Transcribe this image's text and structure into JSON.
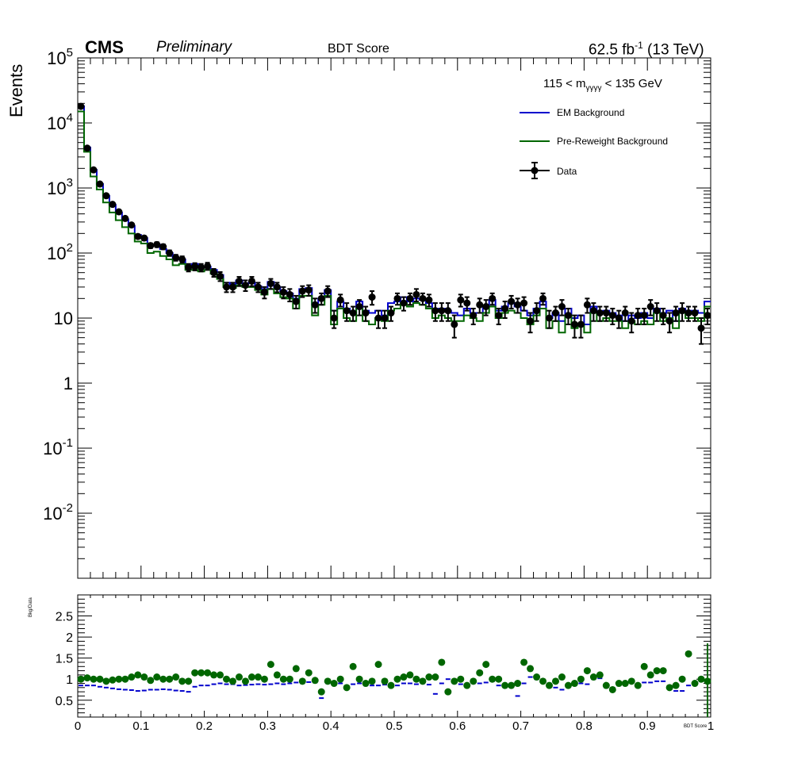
{
  "header": {
    "experiment": "CMS",
    "status": "Preliminary",
    "title": "BDT Score",
    "lumi": "62.5 fb",
    "lumi_sup": "-1",
    "lumi_energy": " (13 TeV)"
  },
  "annotation": {
    "mass_prefix": "115 < m",
    "mass_sub": "γγγγ",
    "mass_suffix": " < 135 GeV"
  },
  "colors": {
    "em_background": "#0000cc",
    "pre_reweight": "#006600",
    "data": "#000000",
    "ratio_points": "#006600"
  },
  "chart_data": [
    {
      "type": "line",
      "name": "main-panel",
      "ylabel": "Events",
      "yscale": "log",
      "ylim": [
        0.001,
        100000
      ],
      "xlim": [
        0,
        1
      ],
      "bins": 100,
      "ytick_labels": [
        "10^5",
        "10^4",
        "10^3",
        "10^2",
        "10",
        "1",
        "10^-1",
        "10^-2"
      ],
      "legend": [
        "EM Background",
        "Pre-Reweight Background",
        "Data"
      ],
      "legend_position": "top-right",
      "series": [
        {
          "name": "EM Background",
          "values": [
            18000,
            4200,
            1900,
            1150,
            760,
            550,
            420,
            330,
            260,
            190,
            170,
            130,
            135,
            115,
            100,
            80,
            80,
            62,
            68,
            60,
            62,
            55,
            46,
            35,
            33,
            38,
            34,
            35,
            31,
            28,
            36,
            30,
            26,
            24,
            20,
            28,
            29,
            16,
            20,
            27,
            13,
            18,
            14,
            12,
            18,
            13,
            12,
            13,
            11,
            17,
            18,
            21,
            18,
            20,
            19,
            17,
            13,
            14,
            13,
            12,
            11,
            14,
            12,
            12,
            15,
            19,
            13,
            15,
            17,
            15,
            13,
            11,
            14,
            18,
            10,
            12,
            9,
            14,
            10,
            11,
            8,
            15,
            12,
            13,
            12,
            11,
            9,
            11,
            10,
            12,
            10,
            14,
            12,
            13,
            9,
            14,
            13,
            13,
            12,
            18
          ]
        },
        {
          "name": "Pre-Reweight Background",
          "values": [
            15000,
            3600,
            1500,
            950,
            600,
            420,
            320,
            250,
            200,
            150,
            140,
            100,
            105,
            90,
            80,
            65,
            68,
            55,
            55,
            52,
            55,
            48,
            40,
            30,
            29,
            32,
            30,
            30,
            27,
            23,
            28,
            24,
            21,
            20,
            14,
            22,
            22,
            11,
            16,
            22,
            8,
            14,
            10,
            9,
            14,
            9,
            8,
            10,
            9,
            13,
            14,
            17,
            15,
            17,
            16,
            14,
            10,
            11,
            10,
            9,
            9,
            11,
            10,
            9,
            12,
            15,
            10,
            12,
            13,
            12,
            10,
            8,
            11,
            14,
            7,
            9,
            6,
            11,
            7,
            8,
            6,
            12,
            9,
            10,
            9,
            9,
            7,
            9,
            8,
            9,
            8,
            12,
            9,
            10,
            7,
            12,
            10,
            10,
            9,
            15
          ]
        },
        {
          "name": "Data",
          "values": [
            18000,
            4100,
            1900,
            1150,
            760,
            560,
            430,
            340,
            270,
            180,
            170,
            130,
            135,
            125,
            100,
            85,
            80,
            60,
            62,
            60,
            63,
            50,
            44,
            30,
            30,
            37,
            32,
            37,
            30,
            25,
            34,
            30,
            25,
            23,
            18,
            26,
            27,
            16,
            20,
            26,
            10,
            19,
            13,
            12,
            15,
            12,
            21,
            10,
            10,
            12,
            20,
            17,
            20,
            23,
            20,
            19,
            13,
            13,
            13,
            8,
            19,
            17,
            11,
            16,
            15,
            20,
            11,
            14,
            18,
            16,
            17,
            9,
            13,
            20,
            10,
            12,
            15,
            11,
            8,
            8,
            16,
            13,
            12,
            12,
            11,
            10,
            12,
            9,
            11,
            11,
            15,
            13,
            11,
            9,
            12,
            13,
            12,
            12,
            7,
            11
          ]
        },
        {
          "name": "Data error",
          "values": [
            134,
            64,
            44,
            34,
            28,
            24,
            21,
            18,
            16,
            13,
            13,
            11,
            12,
            11,
            10,
            9,
            9,
            8,
            8,
            8,
            8,
            7,
            7,
            5,
            5,
            6,
            6,
            6,
            5,
            5,
            6,
            5,
            5,
            5,
            4,
            5,
            5,
            4,
            4,
            5,
            3,
            4,
            4,
            3,
            4,
            3,
            5,
            3,
            3,
            3,
            4,
            4,
            4,
            5,
            4,
            4,
            4,
            4,
            4,
            3,
            4,
            4,
            3,
            4,
            4,
            4,
            3,
            4,
            4,
            4,
            4,
            3,
            4,
            4,
            3,
            3,
            4,
            3,
            3,
            3,
            4,
            4,
            3,
            3,
            3,
            3,
            3,
            3,
            3,
            3,
            4,
            4,
            3,
            3,
            3,
            4,
            3,
            3,
            3,
            3
          ]
        }
      ]
    },
    {
      "type": "scatter",
      "name": "ratio-panel",
      "xlabel": "BDT Score",
      "ylabel": "Bkg/Data",
      "xlim": [
        0,
        1
      ],
      "ylim": [
        0.1,
        3.0
      ],
      "xtick_labels": [
        "0",
        "0.1",
        "0.2",
        "0.3",
        "0.4",
        "0.5",
        "0.6",
        "0.7",
        "0.8",
        "0.9",
        "1"
      ],
      "ytick_labels": [
        "0.5",
        "1",
        "1.5",
        "2",
        "2.5"
      ],
      "series": [
        {
          "name": "Pre-Reweight Background",
          "values": [
            1.0,
            1.03,
            1.0,
            1.0,
            0.95,
            0.98,
            1.0,
            1.0,
            1.05,
            1.1,
            1.05,
            0.97,
            1.05,
            1.0,
            1.0,
            1.05,
            0.95,
            0.95,
            1.15,
            1.15,
            1.15,
            1.1,
            1.1,
            1.0,
            0.95,
            1.05,
            0.95,
            1.05,
            1.05,
            1.0,
            1.35,
            1.1,
            1.0,
            1.0,
            1.25,
            0.95,
            1.15,
            0.97,
            0.7,
            0.95,
            0.9,
            1.0,
            0.8,
            1.3,
            1.0,
            0.9,
            0.95,
            1.35,
            0.95,
            0.85,
            1.0,
            1.05,
            1.1,
            1.0,
            0.95,
            1.05,
            1.05,
            1.4,
            0.7,
            0.95,
            1.0,
            0.85,
            0.95,
            1.15,
            1.35,
            1.0,
            1.0,
            0.85,
            0.85,
            0.9,
            1.4,
            1.25,
            1.05,
            0.95,
            0.85,
            0.95,
            1.05,
            0.85,
            0.9,
            1.0,
            1.2,
            1.05,
            1.1,
            0.85,
            0.75,
            0.9,
            0.9,
            0.95,
            0.85,
            1.3,
            1.1,
            1.2,
            1.2,
            0.8,
            0.85,
            1.0,
            1.6,
            0.9,
            1.0,
            0.95
          ]
        },
        {
          "name": "EM Background",
          "values": [
            0.85,
            0.85,
            0.85,
            0.82,
            0.8,
            0.78,
            0.76,
            0.75,
            0.74,
            0.72,
            0.73,
            0.75,
            0.75,
            0.76,
            0.75,
            0.73,
            0.72,
            0.7,
            0.82,
            0.85,
            0.85,
            0.88,
            0.9,
            0.88,
            0.88,
            0.85,
            0.86,
            0.87,
            0.88,
            0.87,
            0.88,
            0.9,
            0.88,
            0.9,
            0.92,
            0.9,
            0.93,
            0.92,
            0.55,
            0.9,
            0.88,
            0.9,
            0.8,
            0.88,
            0.9,
            0.85,
            0.85,
            0.85,
            0.87,
            0.88,
            0.85,
            0.9,
            0.9,
            0.88,
            0.9,
            0.87,
            0.65,
            0.9,
            1.0,
            0.9,
            0.88,
            0.85,
            0.9,
            0.9,
            0.92,
            0.95,
            0.85,
            0.88,
            0.9,
            0.6,
            0.9,
            1.05,
            1.0,
            0.95,
            0.9,
            0.8,
            0.75,
            0.88,
            0.88,
            0.9,
            0.88,
            1.0,
            1.02,
            0.8,
            0.72,
            0.85,
            0.88,
            0.95,
            0.82,
            0.92,
            0.92,
            0.95,
            0.95,
            0.78,
            0.72,
            0.72,
            0.85,
            0.9,
            0.95,
            0.95
          ]
        }
      ]
    }
  ]
}
